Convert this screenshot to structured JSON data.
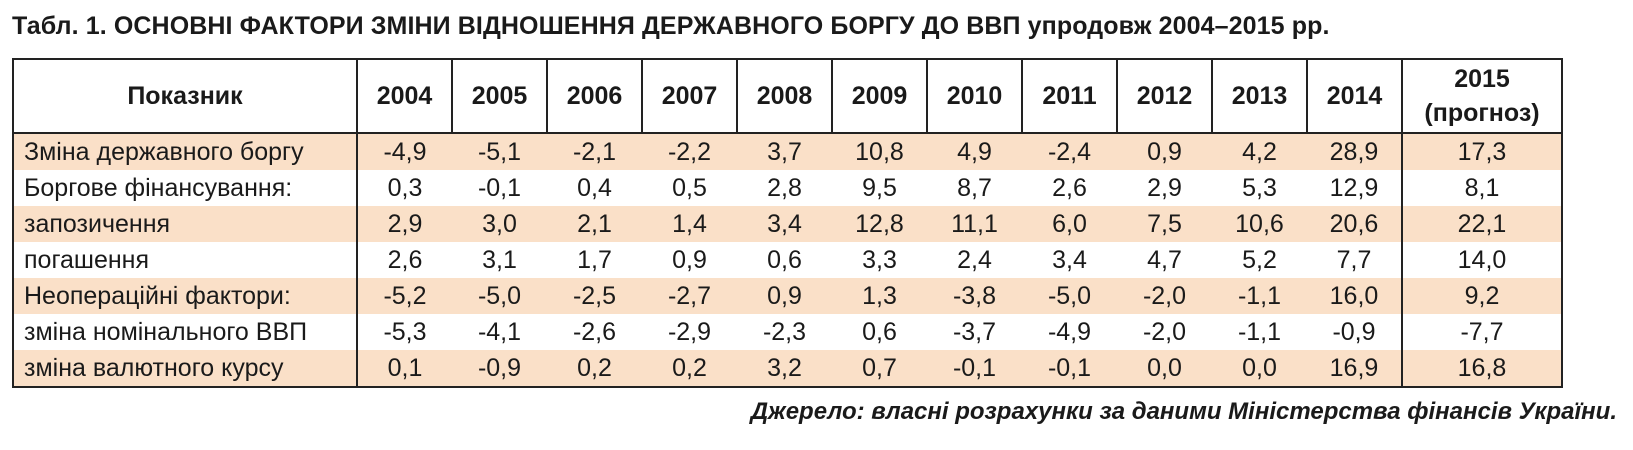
{
  "title": "Табл. 1. ОСНОВНІ ФАКТОРИ ЗМІНИ ВІДНОШЕННЯ ДЕРЖАВНОГО БОРГУ ДО ВВП упродовж 2004–2015 рр.",
  "table": {
    "header_label": "Показник",
    "years": [
      "2004",
      "2005",
      "2006",
      "2007",
      "2008",
      "2009",
      "2010",
      "2011",
      "2012",
      "2013",
      "2014"
    ],
    "last_year": "2015",
    "last_year_note": "(прогноз)",
    "rows": [
      {
        "label": "Зміна державного боргу",
        "values": [
          "-4,9",
          "-5,1",
          "-2,1",
          "-2,2",
          "3,7",
          "10,8",
          "4,9",
          "-2,4",
          "0,9",
          "4,2",
          "28,9",
          "17,3"
        ]
      },
      {
        "label": "Боргове фінансування:",
        "values": [
          "0,3",
          "-0,1",
          "0,4",
          "0,5",
          "2,8",
          "9,5",
          "8,7",
          "2,6",
          "2,9",
          "5,3",
          "12,9",
          "8,1"
        ]
      },
      {
        "label": "запозичення",
        "values": [
          "2,9",
          "3,0",
          "2,1",
          "1,4",
          "3,4",
          "12,8",
          "11,1",
          "6,0",
          "7,5",
          "10,6",
          "20,6",
          "22,1"
        ]
      },
      {
        "label": "погашення",
        "values": [
          "2,6",
          "3,1",
          "1,7",
          "0,9",
          "0,6",
          "3,3",
          "2,4",
          "3,4",
          "4,7",
          "5,2",
          "7,7",
          "14,0"
        ]
      },
      {
        "label": "Неопераційні фактори:",
        "values": [
          "-5,2",
          "-5,0",
          "-2,5",
          "-2,7",
          "0,9",
          "1,3",
          "-3,8",
          "-5,0",
          "-2,0",
          "-1,1",
          "16,0",
          "9,2"
        ]
      },
      {
        "label": "зміна номінального ВВП",
        "values": [
          "-5,3",
          "-4,1",
          "-2,6",
          "-2,9",
          "-2,3",
          "0,6",
          "-3,7",
          "-4,9",
          "-2,0",
          "-1,1",
          "-0,9",
          "-7,7"
        ]
      },
      {
        "label": "зміна валютного курсу",
        "values": [
          "0,1",
          "-0,9",
          "0,2",
          "0,2",
          "3,2",
          "0,7",
          "-0,1",
          "-0,1",
          "0,0",
          "0,0",
          "16,9",
          "16,8"
        ]
      }
    ]
  },
  "source": "Джерело: власні розрахунки за даними Міністерства фінансів України."
}
